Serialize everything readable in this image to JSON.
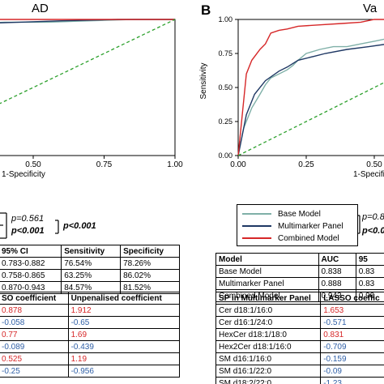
{
  "panel_b_label": "B",
  "chart_data": [
    {
      "type": "line",
      "title": "AD",
      "xlabel": "1-Specificity",
      "ylabel": "",
      "xlim": [
        0,
        1
      ],
      "ylim": [
        0,
        1
      ],
      "x_ticks": [
        "0.50",
        "0.75",
        "1.00"
      ],
      "series": [
        {
          "role": "base",
          "color": "#7fb0a8",
          "x": [
            0.0,
            0.02,
            0.04,
            0.07,
            0.1,
            0.15,
            0.2,
            0.3,
            0.4,
            0.55,
            0.7,
            0.85,
            1.0
          ],
          "y": [
            0.9,
            0.93,
            0.95,
            0.95,
            0.96,
            0.96,
            0.97,
            0.97,
            0.98,
            0.98,
            0.99,
            1.0,
            1.0
          ]
        },
        {
          "role": "multimarker",
          "color": "#1f3864",
          "x": [
            0.0,
            0.03,
            0.07,
            0.1,
            0.15,
            0.2,
            0.3,
            0.45,
            0.6,
            0.8,
            1.0
          ],
          "y": [
            0.91,
            0.93,
            0.94,
            0.95,
            0.95,
            0.96,
            0.97,
            0.98,
            0.99,
            1.0,
            1.0
          ]
        },
        {
          "role": "combined",
          "color": "#d62728",
          "x": [
            0.0,
            0.02,
            0.05,
            0.1,
            0.15,
            0.25,
            0.35,
            0.5,
            0.7,
            1.0
          ],
          "y": [
            0.95,
            0.97,
            0.98,
            0.98,
            0.99,
            0.99,
            1.0,
            1.0,
            1.0,
            1.0
          ]
        },
        {
          "role": "reference",
          "color": "#2ca02c",
          "x": [
            0,
            1
          ],
          "y": [
            0,
            1
          ]
        }
      ]
    },
    {
      "type": "line",
      "title": "Va",
      "xlabel": "1-Specificit",
      "ylabel": "Sensitivity",
      "xlim": [
        0,
        1
      ],
      "ylim": [
        0,
        1
      ],
      "x_ticks": [
        "0.00",
        "0.25",
        "0.50"
      ],
      "y_ticks": [
        "0.00",
        "0.25",
        "0.50",
        "0.75",
        "1.00"
      ],
      "series": [
        {
          "name": "Base Model",
          "color": "#7fb0a8",
          "x": [
            0.0,
            0.02,
            0.05,
            0.08,
            0.1,
            0.12,
            0.15,
            0.18,
            0.2,
            0.22,
            0.25,
            0.3,
            0.35,
            0.4,
            0.45,
            0.5,
            0.55,
            0.6,
            0.7,
            0.8,
            0.9,
            1.0
          ],
          "y": [
            0.0,
            0.2,
            0.35,
            0.45,
            0.52,
            0.57,
            0.6,
            0.63,
            0.66,
            0.7,
            0.75,
            0.78,
            0.8,
            0.8,
            0.82,
            0.84,
            0.86,
            0.88,
            0.92,
            0.95,
            0.98,
            1.0
          ]
        },
        {
          "name": "Multimarker Panel",
          "color": "#1f3864",
          "x": [
            0.0,
            0.03,
            0.06,
            0.1,
            0.15,
            0.18,
            0.22,
            0.28,
            0.32,
            0.4,
            0.48,
            0.55,
            0.6,
            0.7,
            0.8,
            0.9,
            1.0
          ],
          "y": [
            0.0,
            0.3,
            0.45,
            0.55,
            0.62,
            0.65,
            0.7,
            0.73,
            0.75,
            0.78,
            0.8,
            0.82,
            0.84,
            0.88,
            0.93,
            0.97,
            1.0
          ]
        },
        {
          "name": "Combined Model",
          "color": "#d62728",
          "x": [
            0.0,
            0.03,
            0.05,
            0.08,
            0.1,
            0.12,
            0.15,
            0.18,
            0.22,
            0.3,
            0.38,
            0.45,
            0.5,
            0.6,
            0.7,
            1.0
          ],
          "y": [
            0.0,
            0.6,
            0.7,
            0.78,
            0.82,
            0.9,
            0.92,
            0.93,
            0.95,
            0.96,
            0.97,
            0.98,
            1.0,
            1.0,
            1.0,
            1.0
          ]
        },
        {
          "name": "",
          "role": "reference",
          "color": "#2ca02c",
          "x": [
            0,
            1
          ],
          "y": [
            0,
            1
          ]
        }
      ],
      "legend": "below-plot"
    }
  ],
  "left_pvalues": {
    "p1": "p=0.561",
    "p2": "p<0.001",
    "p3": "p<0.001"
  },
  "right_pvalues": {
    "p1": "p=0.8",
    "p2": "p<0.0"
  },
  "left_metrics": {
    "headers": [
      "95% CI",
      "Sensitivity",
      "Specificity"
    ],
    "rows": [
      [
        "0.783-0.882",
        "76.54%",
        "78.26%"
      ],
      [
        "0.758-0.865",
        "63.25%",
        "86.02%"
      ],
      [
        "0.870-0.943",
        "84.57%",
        "81.52%"
      ]
    ]
  },
  "right_metrics": {
    "headers": [
      "Model",
      "AUC",
      "95"
    ],
    "rows": [
      [
        "Base Model",
        "0.838",
        "0.83"
      ],
      [
        "Multimarker Panel",
        "0.888",
        "0.83"
      ],
      [
        "Combined Model",
        "0.942",
        "0.90"
      ]
    ]
  },
  "left_coef": {
    "headers": [
      "SO coefficient",
      "Unpenalised coefficient"
    ],
    "rows": [
      [
        "0.878",
        "1.912",
        "red"
      ],
      [
        "-0.058",
        "-0.65",
        "blue"
      ],
      [
        "0.77",
        "1.69",
        "red"
      ],
      [
        "-0.089",
        "-0.439",
        "blue"
      ],
      [
        "0.525",
        "1.19",
        "red"
      ],
      [
        "-0.25",
        "-0.956",
        "blue"
      ]
    ]
  },
  "right_coef": {
    "headers": [
      "SP in Multimarker Panel",
      "LASSO coeffic"
    ],
    "rows": [
      [
        "Cer d18:1/16:0",
        "1.653",
        "red"
      ],
      [
        "Cer d16:1/24:0",
        "-0.571",
        "blue"
      ],
      [
        "HexCer d18:1/18:0",
        "0.831",
        "red"
      ],
      [
        "Hex2Cer d18:1/16:0",
        "-0.709",
        "blue"
      ],
      [
        "SM d16:1/16:0",
        "-0.159",
        "blue"
      ],
      [
        "SM d16:1/22:0",
        "-0.09",
        "blue"
      ],
      [
        "SM d18:2/22:0",
        "-1.23",
        "blue"
      ]
    ]
  }
}
